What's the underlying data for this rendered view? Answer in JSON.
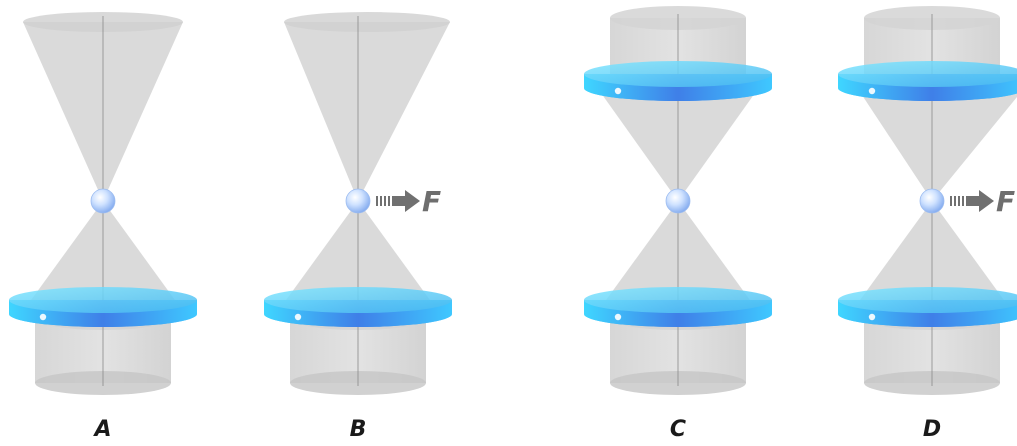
{
  "panels": [
    {
      "label": "A",
      "top_lens": false,
      "force": false,
      "top_beam_shift": 0
    },
    {
      "label": "B",
      "top_lens": false,
      "force": true,
      "top_beam_shift": 12
    },
    {
      "label": "C",
      "top_lens": true,
      "force": false,
      "top_beam_shift": 0
    },
    {
      "label": "D",
      "top_lens": true,
      "force": true,
      "top_beam_shift": 12
    }
  ],
  "force_label": "F",
  "colors": {
    "beam": "#9e9e9e",
    "axis": "#8a8a8a",
    "lens_light": "#3fd0ff",
    "lens_dark": "#3a5fe0",
    "bead": "#bcd8ff",
    "arrow": "#707070",
    "label": "#1a1a1a"
  }
}
